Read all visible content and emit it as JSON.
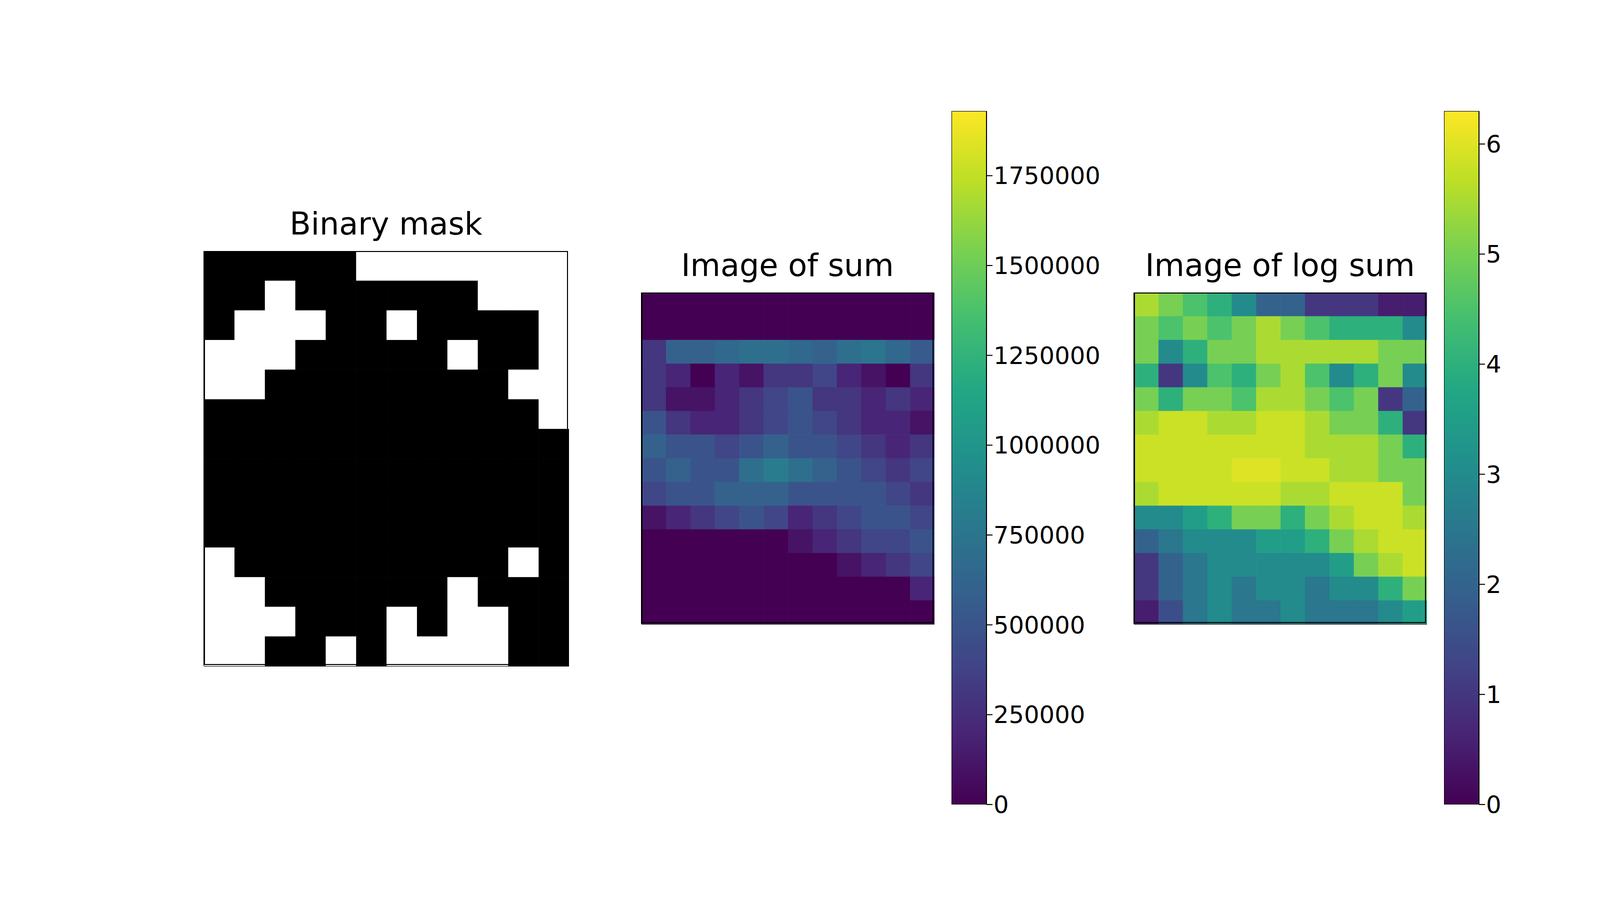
{
  "chart_data": [
    {
      "type": "heatmap",
      "title": "Binary mask",
      "color": "#000000",
      "tick_labels": false,
      "xlim": [
        0,
        12
      ],
      "ylim": [
        14,
        0
      ],
      "xticks": [
        0,
        1.5,
        3,
        4.5,
        6,
        7.5,
        9,
        10.5,
        12
      ],
      "yticks": [
        0,
        2.8,
        5.6,
        8.4,
        11.2,
        14
      ],
      "cells": [
        [
          1,
          1,
          1,
          1,
          1,
          0,
          0,
          0,
          0,
          0,
          0,
          0
        ],
        [
          1,
          1,
          0,
          1,
          1,
          1,
          1,
          1,
          1,
          0,
          0,
          0
        ],
        [
          1,
          0,
          0,
          0,
          1,
          1,
          0,
          1,
          1,
          1,
          1,
          0
        ],
        [
          0,
          0,
          0,
          1,
          1,
          1,
          1,
          1,
          0,
          1,
          1,
          0
        ],
        [
          0,
          0,
          1,
          1,
          1,
          1,
          1,
          1,
          1,
          1,
          0,
          0
        ],
        [
          1,
          1,
          1,
          1,
          1,
          1,
          1,
          1,
          1,
          1,
          1,
          0
        ],
        [
          1,
          1,
          1,
          1,
          1,
          1,
          1,
          1,
          1,
          1,
          1,
          1
        ],
        [
          1,
          1,
          1,
          1,
          1,
          1,
          1,
          1,
          1,
          1,
          1,
          1
        ],
        [
          1,
          1,
          1,
          1,
          1,
          1,
          1,
          1,
          1,
          1,
          1,
          1
        ],
        [
          1,
          1,
          1,
          1,
          1,
          1,
          1,
          1,
          1,
          1,
          1,
          1
        ],
        [
          0,
          1,
          1,
          1,
          1,
          1,
          1,
          1,
          1,
          1,
          0,
          1
        ],
        [
          0,
          0,
          1,
          1,
          1,
          1,
          1,
          1,
          0,
          1,
          1,
          1
        ],
        [
          0,
          0,
          0,
          1,
          1,
          1,
          0,
          1,
          0,
          0,
          1,
          1
        ],
        [
          0,
          0,
          1,
          1,
          0,
          1,
          0,
          0,
          0,
          0,
          1,
          1
        ]
      ]
    },
    {
      "type": "heatmap",
      "title": "Image of sum",
      "tick_labels": false,
      "xlim": [
        0,
        12
      ],
      "ylim": [
        14,
        0
      ],
      "xticks": [
        0,
        5.5,
        11
      ],
      "yticks": [
        2.85,
        5.7,
        8.5,
        11.3
      ],
      "colorbar": {
        "range": [
          0,
          1930000
        ],
        "ticks": [
          0,
          250000,
          500000,
          750000,
          1000000,
          1250000,
          1500000,
          1750000
        ]
      },
      "cells": [
        [
          0,
          0,
          0,
          0,
          0,
          0,
          0,
          0,
          0,
          0,
          0,
          0
        ],
        [
          0,
          0,
          0,
          0,
          0,
          0,
          0,
          0,
          0,
          0,
          0,
          0
        ],
        [
          300000,
          600000,
          600000,
          650000,
          700000,
          700000,
          650000,
          600000,
          700000,
          750000,
          650000,
          550000
        ],
        [
          300000,
          200000,
          0,
          200000,
          100000,
          300000,
          300000,
          400000,
          200000,
          100000,
          0,
          300000
        ],
        [
          300000,
          100000,
          100000,
          200000,
          300000,
          400000,
          500000,
          300000,
          300000,
          200000,
          300000,
          200000
        ],
        [
          500000,
          300000,
          200000,
          200000,
          300000,
          400000,
          500000,
          400000,
          300000,
          200000,
          200000,
          100000
        ],
        [
          600000,
          500000,
          500000,
          400000,
          500000,
          600000,
          500000,
          500000,
          400000,
          300000,
          200000,
          300000
        ],
        [
          500000,
          600000,
          500000,
          500000,
          700000,
          800000,
          700000,
          600000,
          500000,
          400000,
          300000,
          400000
        ],
        [
          400000,
          500000,
          500000,
          600000,
          600000,
          600000,
          500000,
          500000,
          500000,
          500000,
          400000,
          300000
        ],
        [
          100000,
          200000,
          300000,
          400000,
          500000,
          400000,
          200000,
          300000,
          400000,
          500000,
          500000,
          400000
        ],
        [
          0,
          0,
          0,
          0,
          0,
          0,
          100000,
          200000,
          300000,
          400000,
          400000,
          500000
        ],
        [
          0,
          0,
          0,
          0,
          0,
          0,
          0,
          0,
          100000,
          200000,
          300000,
          400000
        ],
        [
          0,
          0,
          0,
          0,
          0,
          0,
          0,
          0,
          0,
          0,
          0,
          200000
        ],
        [
          0,
          0,
          0,
          0,
          0,
          0,
          0,
          0,
          0,
          0,
          0,
          0
        ]
      ]
    },
    {
      "type": "heatmap",
      "title": "Image of log sum",
      "tick_labels": false,
      "xlim": [
        0,
        12
      ],
      "ylim": [
        14,
        0
      ],
      "xticks": [
        0,
        5.5,
        11
      ],
      "yticks": [
        2.85,
        5.7,
        8.5,
        11.3
      ],
      "colorbar": {
        "range": [
          0,
          6.3
        ],
        "ticks": [
          0,
          1,
          2,
          3,
          4,
          5,
          6
        ]
      },
      "cells": [
        [
          5.5,
          5,
          4.5,
          4,
          3,
          2,
          2,
          1,
          1,
          1,
          0.5,
          0.5
        ],
        [
          5,
          4.5,
          5,
          4.5,
          5,
          5.5,
          5,
          4.5,
          4,
          4,
          4,
          3
        ],
        [
          5,
          3,
          4,
          5,
          5,
          5.5,
          5.5,
          5.5,
          5.5,
          5.5,
          5,
          5
        ],
        [
          4,
          1,
          3,
          4.5,
          4,
          5,
          5.5,
          4.5,
          3,
          4,
          5,
          3
        ],
        [
          5,
          4,
          5,
          5,
          4.5,
          5.5,
          5.5,
          5,
          4.5,
          5,
          1,
          2
        ],
        [
          5.5,
          5.8,
          5.8,
          5.5,
          5.5,
          5.8,
          5.8,
          5.5,
          5,
          5,
          4,
          1
        ],
        [
          5.8,
          5.8,
          5.8,
          5.8,
          5.8,
          5.8,
          5.8,
          5.5,
          5.5,
          5.5,
          5,
          4
        ],
        [
          5.8,
          5.8,
          5.8,
          5.8,
          6,
          6,
          5.8,
          5.8,
          5.5,
          5.5,
          5,
          5
        ],
        [
          5.5,
          5.8,
          5.8,
          5.8,
          5.8,
          5.8,
          5.5,
          5.5,
          5.8,
          5.8,
          5.8,
          5
        ],
        [
          3,
          3,
          3.5,
          4,
          5,
          5,
          4,
          5,
          5.5,
          5.8,
          5.8,
          5.5
        ],
        [
          2,
          2.5,
          3,
          3,
          3,
          3.5,
          3.5,
          4,
          5,
          5.5,
          5.8,
          5.8
        ],
        [
          1,
          2,
          2.5,
          3,
          3,
          3,
          3,
          3,
          3.5,
          5,
          5.5,
          5.8
        ],
        [
          1,
          2,
          2.5,
          3,
          2.5,
          3,
          3,
          2.5,
          3,
          3,
          4,
          5
        ],
        [
          0.5,
          1.5,
          2.5,
          3,
          2.5,
          2.5,
          3,
          2.5,
          2.5,
          2.5,
          3,
          3.5
        ]
      ]
    }
  ]
}
